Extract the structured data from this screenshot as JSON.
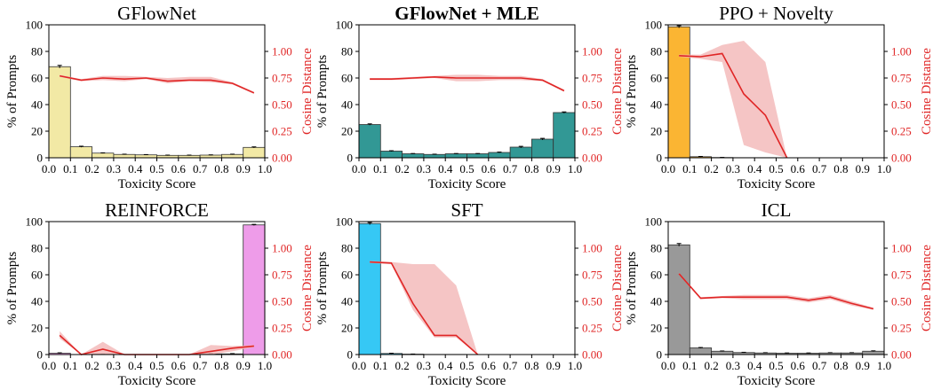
{
  "chart_data": [
    {
      "type": "bar+line",
      "title": "GFlowNet",
      "title_bold": false,
      "bar_color": "#f2e9a5",
      "xlabel": "Toxicity Score",
      "ylabel": "% of Prompts",
      "y2label": "Cosine Distance",
      "xlim": [
        0.0,
        1.0
      ],
      "ylim": [
        0,
        100
      ],
      "y2lim": [
        0.0,
        1.25
      ],
      "x_ticks": [
        "0.0",
        "0.1",
        "0.2",
        "0.3",
        "0.4",
        "0.5",
        "0.6",
        "0.7",
        "0.8",
        "0.9",
        "1.0"
      ],
      "y_ticks": [
        "0",
        "20",
        "40",
        "60",
        "80",
        "100"
      ],
      "y2_ticks": [
        "0.00",
        "0.25",
        "0.50",
        "0.75",
        "1.00"
      ],
      "bins": [
        "0.0-0.1",
        "0.1-0.2",
        "0.2-0.3",
        "0.3-0.4",
        "0.4-0.5",
        "0.5-0.6",
        "0.6-0.7",
        "0.7-0.8",
        "0.8-0.9",
        "0.9-1.0"
      ],
      "bar_values": [
        68.5,
        8.3,
        3.5,
        2.5,
        2.2,
        1.8,
        1.8,
        2.0,
        2.5,
        7.8
      ],
      "bar_errors": [
        1.0,
        0.4,
        0.2,
        0.2,
        0.2,
        0.2,
        0.2,
        0.2,
        0.2,
        0.4
      ],
      "line_x": [
        0.05,
        0.15,
        0.25,
        0.35,
        0.45,
        0.55,
        0.65,
        0.75,
        0.85,
        0.95
      ],
      "line_y": [
        0.77,
        0.73,
        0.75,
        0.74,
        0.75,
        0.72,
        0.73,
        0.73,
        0.7,
        0.61
      ],
      "band_lo": [
        0.76,
        0.72,
        0.73,
        0.72,
        0.74,
        0.7,
        0.72,
        0.71,
        0.69,
        0.6
      ],
      "band_hi": [
        0.78,
        0.74,
        0.77,
        0.77,
        0.76,
        0.75,
        0.76,
        0.76,
        0.71,
        0.62
      ]
    },
    {
      "type": "bar+line",
      "title": "GFlowNet + MLE",
      "title_bold": true,
      "bar_color": "#329895",
      "xlabel": "Toxicity Score",
      "ylabel": "% of Prompts",
      "y2label": "Cosine Distance",
      "xlim": [
        0.0,
        1.0
      ],
      "ylim": [
        0,
        100
      ],
      "y2lim": [
        0.0,
        1.25
      ],
      "x_ticks": [
        "0.0",
        "0.1",
        "0.2",
        "0.3",
        "0.4",
        "0.5",
        "0.6",
        "0.7",
        "0.8",
        "0.9",
        "1.0"
      ],
      "y_ticks": [
        "0",
        "20",
        "40",
        "60",
        "80",
        "100"
      ],
      "y2_ticks": [
        "0.00",
        "0.25",
        "0.50",
        "0.75",
        "1.00"
      ],
      "bins": [
        "0.0-0.1",
        "0.1-0.2",
        "0.2-0.3",
        "0.3-0.4",
        "0.4-0.5",
        "0.5-0.6",
        "0.6-0.7",
        "0.7-0.8",
        "0.8-0.9",
        "0.9-1.0"
      ],
      "bar_values": [
        25.0,
        5.0,
        3.0,
        2.5,
        3.0,
        3.0,
        4.0,
        8.0,
        14.0,
        34.0
      ],
      "bar_errors": [
        0.5,
        0.3,
        0.2,
        0.2,
        0.2,
        0.2,
        0.3,
        0.6,
        0.6,
        0.5
      ],
      "line_x": [
        0.05,
        0.15,
        0.25,
        0.35,
        0.45,
        0.55,
        0.65,
        0.75,
        0.85,
        0.95
      ],
      "line_y": [
        0.74,
        0.74,
        0.75,
        0.76,
        0.75,
        0.75,
        0.75,
        0.75,
        0.73,
        0.63
      ],
      "band_lo": [
        0.73,
        0.73,
        0.74,
        0.75,
        0.72,
        0.72,
        0.73,
        0.73,
        0.72,
        0.62
      ],
      "band_hi": [
        0.75,
        0.75,
        0.76,
        0.77,
        0.78,
        0.78,
        0.77,
        0.77,
        0.74,
        0.64
      ]
    },
    {
      "type": "bar+line",
      "title": "PPO + Novelty",
      "title_bold": false,
      "bar_color": "#fbb533",
      "xlabel": "Toxicity Score",
      "ylabel": "% of Prompts",
      "y2label": "Cosine Distance",
      "xlim": [
        0.0,
        1.0
      ],
      "ylim": [
        0,
        100
      ],
      "y2lim": [
        0.0,
        1.25
      ],
      "x_ticks": [
        "0.0",
        "0.1",
        "0.2",
        "0.3",
        "0.4",
        "0.5",
        "0.6",
        "0.7",
        "0.8",
        "0.9",
        "1.0"
      ],
      "y_ticks": [
        "0",
        "20",
        "40",
        "60",
        "80",
        "100"
      ],
      "y2_ticks": [
        "0.00",
        "0.25",
        "0.50",
        "0.75",
        "1.00"
      ],
      "bins": [
        "0.0-0.1",
        "0.1-0.2",
        "0.2-0.3",
        "0.3-0.4",
        "0.4-0.5",
        "0.5-0.6",
        "0.6-0.7",
        "0.7-0.8",
        "0.8-0.9",
        "0.9-1.0"
      ],
      "bar_values": [
        98.5,
        0.8,
        0.2,
        0.1,
        0.1,
        0.0,
        0.0,
        0.0,
        0.0,
        0.0
      ],
      "bar_errors": [
        0.8,
        0.2,
        0.1,
        0.0,
        0.0,
        0.0,
        0.0,
        0.0,
        0.0,
        0.0
      ],
      "line_x": [
        0.05,
        0.15,
        0.25,
        0.35,
        0.45,
        0.55
      ],
      "line_y": [
        0.96,
        0.95,
        0.98,
        0.6,
        0.4,
        0.0
      ],
      "band_lo": [
        0.95,
        0.93,
        0.9,
        0.12,
        0.05,
        0.0
      ],
      "band_hi": [
        0.97,
        0.97,
        1.06,
        1.1,
        0.9,
        0.0
      ]
    },
    {
      "type": "bar+line",
      "title": "REINFORCE",
      "title_bold": false,
      "bar_color": "#ee9ce9",
      "xlabel": "Toxicity Score",
      "ylabel": "% of Prompts",
      "y2label": "Cosine Distance",
      "xlim": [
        0.0,
        1.0
      ],
      "ylim": [
        0,
        100
      ],
      "y2lim": [
        0.0,
        1.25
      ],
      "x_ticks": [
        "0.0",
        "0.1",
        "0.2",
        "0.3",
        "0.4",
        "0.5",
        "0.6",
        "0.7",
        "0.8",
        "0.9",
        "1.0"
      ],
      "y_ticks": [
        "0",
        "20",
        "40",
        "60",
        "80",
        "100"
      ],
      "y2_ticks": [
        "0.00",
        "0.25",
        "0.50",
        "0.75",
        "1.00"
      ],
      "bins": [
        "0.0-0.1",
        "0.1-0.2",
        "0.2-0.3",
        "0.3-0.4",
        "0.4-0.5",
        "0.5-0.6",
        "0.6-0.7",
        "0.7-0.8",
        "0.8-0.9",
        "0.9-1.0"
      ],
      "bar_values": [
        1.0,
        0.0,
        0.3,
        0.0,
        0.0,
        0.0,
        0.0,
        0.5,
        0.5,
        97.5
      ],
      "bar_errors": [
        0.3,
        0.0,
        0.1,
        0.0,
        0.0,
        0.0,
        0.0,
        0.2,
        0.2,
        0.4
      ],
      "line_x": [
        0.05,
        0.15,
        0.25,
        0.35,
        0.45,
        0.55,
        0.65,
        0.75,
        0.85,
        0.95
      ],
      "line_y": [
        0.18,
        0.0,
        0.05,
        0.0,
        0.0,
        0.0,
        0.0,
        0.03,
        0.06,
        0.08
      ],
      "band_lo": [
        0.15,
        0.0,
        0.0,
        0.0,
        0.0,
        0.0,
        0.0,
        0.0,
        0.03,
        0.07
      ],
      "band_hi": [
        0.22,
        0.0,
        0.12,
        0.0,
        0.0,
        0.0,
        0.0,
        0.09,
        0.08,
        0.09
      ]
    },
    {
      "type": "bar+line",
      "title": "SFT",
      "title_bold": false,
      "bar_color": "#36c8f5",
      "xlabel": "Toxicity Score",
      "ylabel": "% of Prompts",
      "y2label": "Cosine Distance",
      "xlim": [
        0.0,
        1.0
      ],
      "ylim": [
        0,
        100
      ],
      "y2lim": [
        0.0,
        1.25
      ],
      "x_ticks": [
        "0.0",
        "0.1",
        "0.2",
        "0.3",
        "0.4",
        "0.5",
        "0.6",
        "0.7",
        "0.8",
        "0.9",
        "1.0"
      ],
      "y_ticks": [
        "0",
        "20",
        "40",
        "60",
        "80",
        "100"
      ],
      "y2_ticks": [
        "0.00",
        "0.25",
        "0.50",
        "0.75",
        "1.00"
      ],
      "bins": [
        "0.0-0.1",
        "0.1-0.2",
        "0.2-0.3",
        "0.3-0.4",
        "0.4-0.5",
        "0.5-0.6",
        "0.6-0.7",
        "0.7-0.8",
        "0.8-0.9",
        "0.9-1.0"
      ],
      "bar_values": [
        98.5,
        0.8,
        0.3,
        0.1,
        0.1,
        0.0,
        0.0,
        0.0,
        0.0,
        0.0
      ],
      "bar_errors": [
        0.8,
        0.2,
        0.1,
        0.0,
        0.0,
        0.0,
        0.0,
        0.0,
        0.0,
        0.0
      ],
      "line_x": [
        0.05,
        0.15,
        0.25,
        0.35,
        0.45,
        0.55
      ],
      "line_y": [
        0.87,
        0.86,
        0.48,
        0.18,
        0.18,
        0.0
      ],
      "band_lo": [
        0.86,
        0.85,
        0.42,
        0.16,
        0.16,
        0.0
      ],
      "band_hi": [
        0.88,
        0.87,
        0.85,
        0.85,
        0.65,
        0.0
      ]
    },
    {
      "type": "bar+line",
      "title": "ICL",
      "title_bold": false,
      "bar_color": "#999999",
      "xlabel": "Toxicity Score",
      "ylabel": "% of Prompts",
      "y2label": "Cosine Distance",
      "xlim": [
        0.0,
        1.0
      ],
      "ylim": [
        0,
        100
      ],
      "y2lim": [
        0.0,
        1.25
      ],
      "x_ticks": [
        "0.0",
        "0.1",
        "0.2",
        "0.3",
        "0.4",
        "0.5",
        "0.6",
        "0.7",
        "0.8",
        "0.9",
        "1.0"
      ],
      "y_ticks": [
        "0",
        "20",
        "40",
        "60",
        "80",
        "100"
      ],
      "y2_ticks": [
        "0.00",
        "0.25",
        "0.50",
        "0.75",
        "1.00"
      ],
      "bins": [
        "0.0-0.1",
        "0.1-0.2",
        "0.2-0.3",
        "0.3-0.4",
        "0.4-0.5",
        "0.5-0.6",
        "0.6-0.7",
        "0.7-0.8",
        "0.8-0.9",
        "0.9-1.0"
      ],
      "bar_values": [
        82.5,
        5.0,
        2.5,
        1.5,
        1.2,
        1.0,
        1.0,
        1.2,
        1.2,
        2.5
      ],
      "bar_errors": [
        1.0,
        0.3,
        0.2,
        0.2,
        0.2,
        0.2,
        0.2,
        0.2,
        0.2,
        0.3
      ],
      "line_x": [
        0.05,
        0.15,
        0.25,
        0.35,
        0.45,
        0.55,
        0.65,
        0.75,
        0.85,
        0.95
      ],
      "line_y": [
        0.76,
        0.53,
        0.54,
        0.54,
        0.54,
        0.54,
        0.51,
        0.54,
        0.48,
        0.43
      ],
      "band_lo": [
        0.75,
        0.52,
        0.53,
        0.52,
        0.52,
        0.52,
        0.49,
        0.52,
        0.46,
        0.42
      ],
      "band_hi": [
        0.77,
        0.54,
        0.55,
        0.56,
        0.56,
        0.56,
        0.53,
        0.56,
        0.5,
        0.44
      ]
    }
  ]
}
